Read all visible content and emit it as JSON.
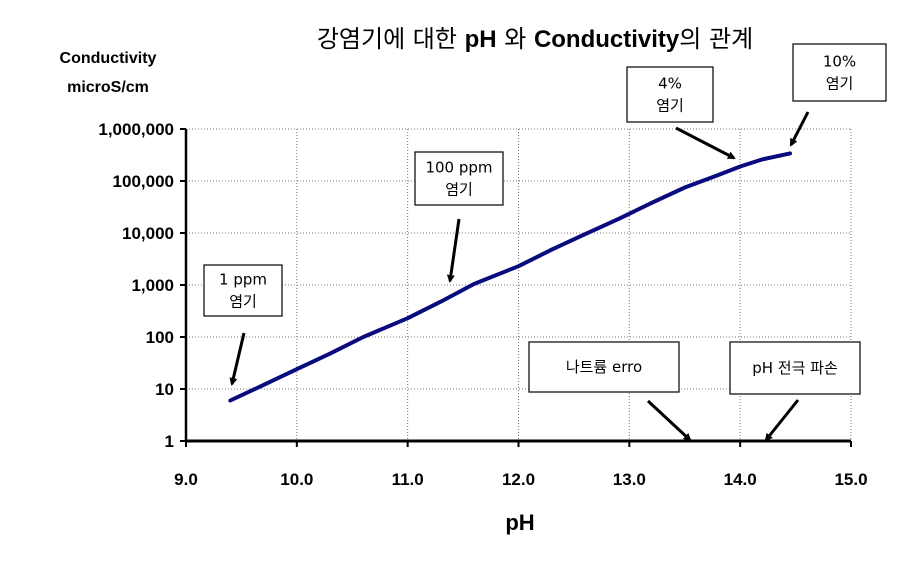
{
  "chart_data": {
    "type": "line",
    "title": "강염기에 대한 pH 와 Conductivity의 관계",
    "xlabel": "pH",
    "ylabel": [
      "Conductivity",
      "microS/cm"
    ],
    "y_scale": "log",
    "xlim": [
      9.0,
      15.0
    ],
    "ylim": [
      1,
      1000000
    ],
    "x_ticks": [
      "9.0",
      "10.0",
      "11.0",
      "12.0",
      "13.0",
      "14.0",
      "15.0"
    ],
    "y_ticks": [
      "1",
      "10",
      "100",
      "1,000",
      "10,000",
      "100,000",
      "1,000,000"
    ],
    "grid": true,
    "line_color": "#0b0b80",
    "series": [
      {
        "x": [
          9.4,
          9.7,
          10.0,
          10.3,
          10.6,
          11.0,
          11.3,
          11.6,
          12.0,
          12.3,
          12.6,
          12.9,
          13.2,
          13.5,
          13.8,
          14.0,
          14.2,
          14.45
        ],
        "values": [
          6,
          12,
          24,
          48,
          100,
          230,
          480,
          1050,
          2300,
          4800,
          9500,
          18500,
          38000,
          75000,
          130000,
          190000,
          260000,
          340000
        ]
      }
    ],
    "annotations": [
      {
        "lines": [
          "1 ppm",
          "염기"
        ],
        "target": [
          9.4,
          6
        ]
      },
      {
        "lines": [
          "100 ppm",
          "염기"
        ],
        "target": [
          11.35,
          500
        ]
      },
      {
        "lines": [
          "4%",
          "염기"
        ],
        "target": [
          13.98,
          160000
        ]
      },
      {
        "lines": [
          "10%",
          "염기"
        ],
        "target": [
          14.45,
          340000
        ]
      },
      {
        "lines": [
          "나트륨 erro"
        ],
        "target": [
          13.55,
          1
        ]
      },
      {
        "lines": [
          "pH 전극 파손"
        ],
        "target": [
          14.25,
          1
        ]
      }
    ]
  }
}
